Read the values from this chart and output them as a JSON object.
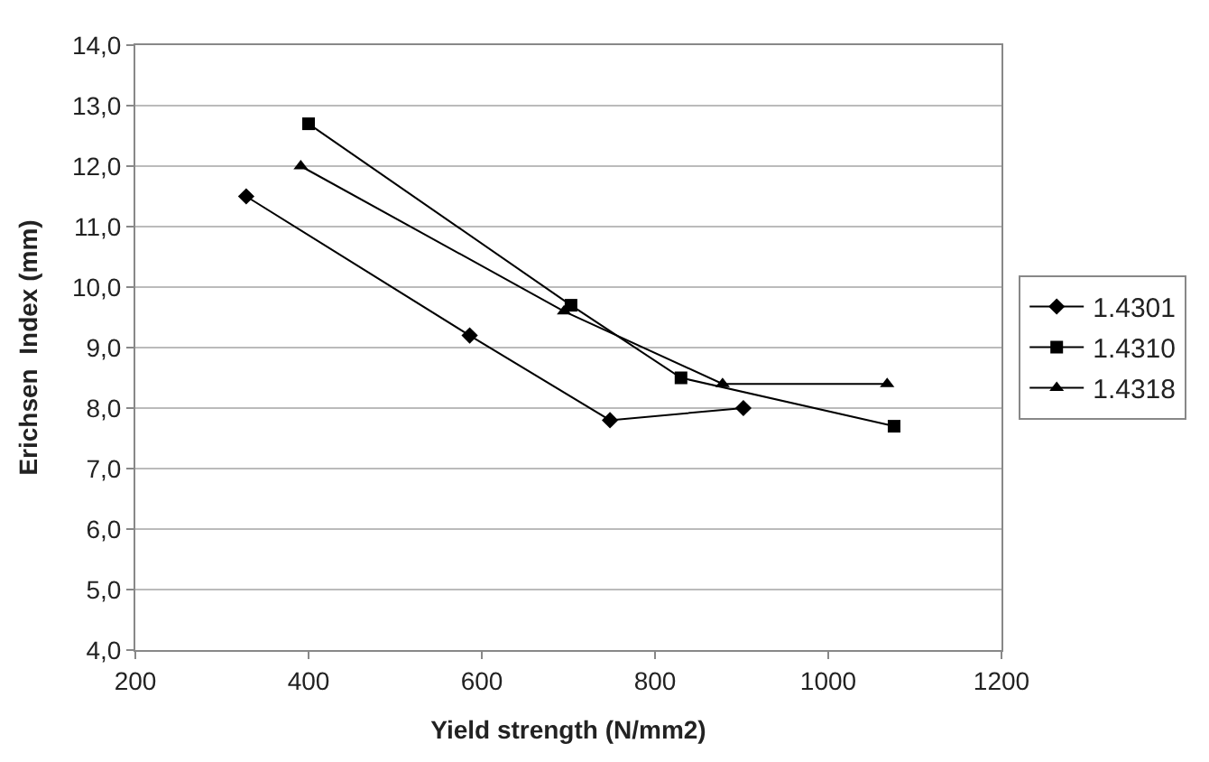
{
  "chart_data": {
    "type": "line",
    "xlabel": "Yield strength (N/mm2)",
    "ylabel": "Erichsen  Index (mm)",
    "series": [
      {
        "name": "1.4301",
        "color": "#000000",
        "marker": "diamond",
        "x": [
          328,
          586,
          748,
          902
        ],
        "values": [
          11.5,
          9.2,
          7.8,
          8.0
        ]
      },
      {
        "name": "1.4310",
        "color": "#000000",
        "marker": "square",
        "x": [
          400,
          703,
          830,
          1076
        ],
        "values": [
          12.7,
          9.7,
          8.5,
          7.7
        ]
      },
      {
        "name": "1.4318",
        "color": "#000000",
        "marker": "triangle",
        "x": [
          391,
          695,
          878,
          1068
        ],
        "values": [
          12.0,
          9.6,
          8.4,
          8.4
        ]
      }
    ],
    "xlim": [
      200,
      1200
    ],
    "xticks": [
      200,
      400,
      600,
      800,
      1000,
      1200
    ],
    "ylim": [
      4,
      14
    ],
    "yticks": [
      {
        "value": 4,
        "label": "4,0"
      },
      {
        "value": 5,
        "label": "5,0"
      },
      {
        "value": 6,
        "label": "6,0"
      },
      {
        "value": 7,
        "label": "7,0"
      },
      {
        "value": 8,
        "label": "8,0"
      },
      {
        "value": 9,
        "label": "9,0"
      },
      {
        "value": 10,
        "label": "10,0"
      },
      {
        "value": 11,
        "label": "11,0"
      },
      {
        "value": 12,
        "label": "12,0"
      },
      {
        "value": 13,
        "label": "13,0"
      },
      {
        "value": 14,
        "label": "14,0"
      }
    ],
    "grid": "y",
    "legend": "right",
    "line_style": "solid"
  }
}
